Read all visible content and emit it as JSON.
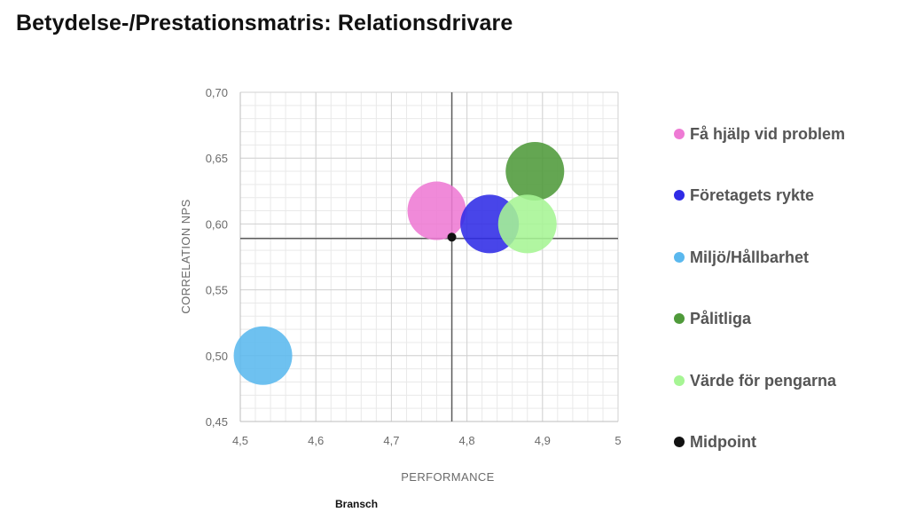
{
  "title": "Betydelse-/Prestationsmatris: Relationsdrivare",
  "footer": "Bransch",
  "chart_data": {
    "type": "scatter",
    "xlabel": "PERFORMANCE",
    "ylabel": "CORRELATION  NPS",
    "xlim": [
      4.5,
      5.0
    ],
    "ylim": [
      0.45,
      0.7
    ],
    "x_ticks": [
      {
        "value": 4.5,
        "label": "4,5"
      },
      {
        "value": 4.6,
        "label": "4,6"
      },
      {
        "value": 4.7,
        "label": "4,7"
      },
      {
        "value": 4.8,
        "label": "4,8"
      },
      {
        "value": 4.9,
        "label": "4,9"
      },
      {
        "value": 5.0,
        "label": "5"
      }
    ],
    "y_ticks": [
      {
        "value": 0.45,
        "label": "0,45"
      },
      {
        "value": 0.5,
        "label": "0,50"
      },
      {
        "value": 0.55,
        "label": "0,55"
      },
      {
        "value": 0.6,
        "label": "0,60"
      },
      {
        "value": 0.65,
        "label": "0,65"
      },
      {
        "value": 0.7,
        "label": "0,70"
      }
    ],
    "grid": true,
    "crosshair": {
      "x": 4.78,
      "y": 0.589
    },
    "series": [
      {
        "name": "Få hjälp vid problem",
        "x": 4.76,
        "y": 0.61,
        "color": "#ee7ad4",
        "marker": "bubble"
      },
      {
        "name": "Företagets rykte",
        "x": 4.83,
        "y": 0.6,
        "color": "#2f2be6",
        "marker": "bubble"
      },
      {
        "name": "Miljö/Hållbarhet",
        "x": 4.53,
        "y": 0.5,
        "color": "#5ab8ee",
        "marker": "bubble"
      },
      {
        "name": "Pålitliga",
        "x": 4.89,
        "y": 0.64,
        "color": "#4f9a3a",
        "marker": "bubble"
      },
      {
        "name": "Värde för pengarna",
        "x": 4.88,
        "y": 0.6,
        "color": "#a6f594",
        "marker": "bubble"
      },
      {
        "name": "Midpoint",
        "x": 4.78,
        "y": 0.59,
        "color": "#111111",
        "marker": "point"
      }
    ],
    "legend_position": "right"
  }
}
